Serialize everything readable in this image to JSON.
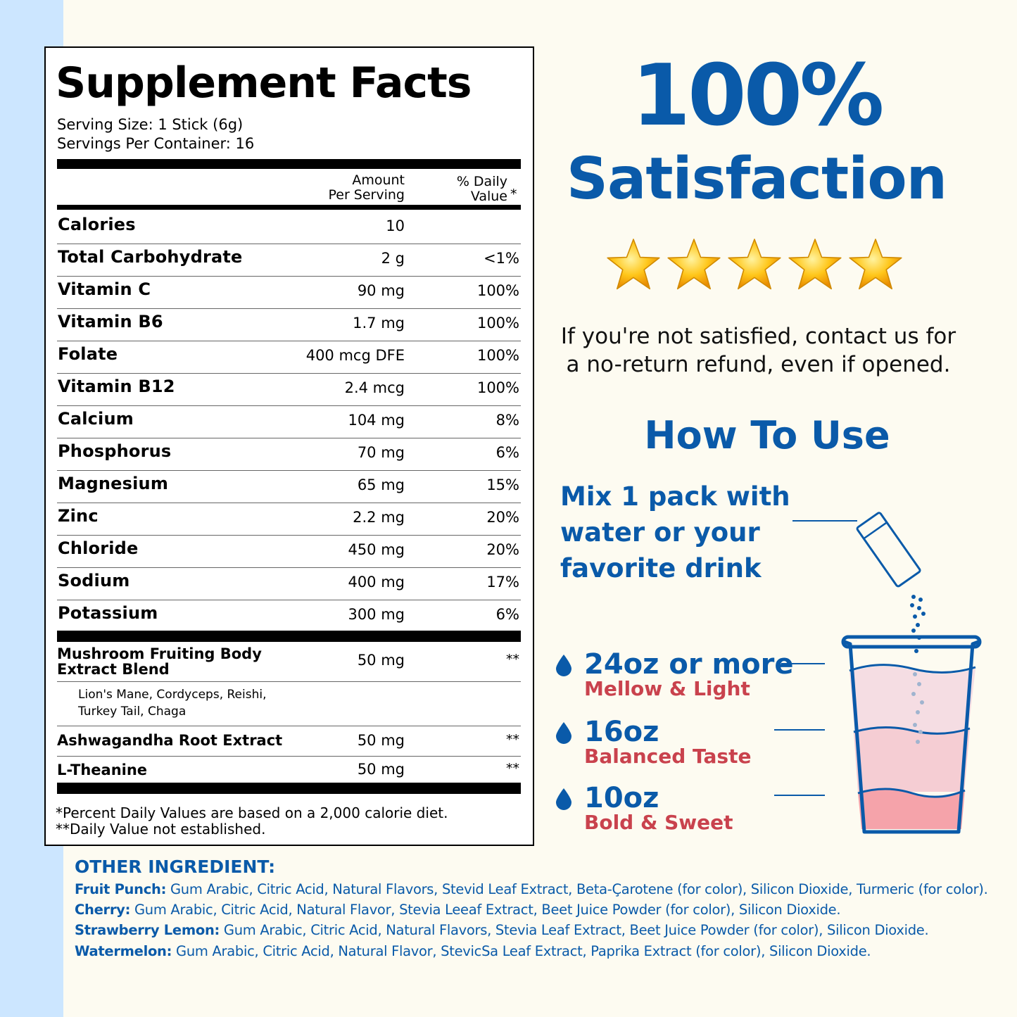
{
  "facts": {
    "title": "Supplement Facts",
    "serving_size": "Serving Size: 1 Stick (6g)",
    "servings_per_container": "Servings Per Container: 16",
    "header_amount_1": "Amount",
    "header_amount_2": "Per Serving",
    "header_dv_1": "% Daily",
    "header_dv_2": "Value",
    "header_dv_star": "*",
    "nutrients": [
      {
        "name": "Calories",
        "amount": "10",
        "dv": ""
      },
      {
        "name": "Total Carbohydrate",
        "amount": "2 g",
        "dv": "<1%"
      },
      {
        "name": "Vitamin C",
        "amount": "90 mg",
        "dv": "100%"
      },
      {
        "name": "Vitamin B6",
        "amount": "1.7 mg",
        "dv": "100%"
      },
      {
        "name": "Folate",
        "amount": "400 mcg DFE",
        "dv": "100%"
      },
      {
        "name": "Vitamin B12",
        "amount": "2.4 mcg",
        "dv": "100%"
      },
      {
        "name": "Calcium",
        "amount": "104 mg",
        "dv": "8%"
      },
      {
        "name": "Phosphorus",
        "amount": "70 mg",
        "dv": "6%"
      },
      {
        "name": "Magnesium",
        "amount": "65 mg",
        "dv": "15%"
      },
      {
        "name": "Zinc",
        "amount": "2.2 mg",
        "dv": "20%"
      },
      {
        "name": "Chloride",
        "amount": "450 mg",
        "dv": "20%"
      },
      {
        "name": "Sodium",
        "amount": "400 mg",
        "dv": "17%"
      },
      {
        "name": "Potassium",
        "amount": "300 mg",
        "dv": "6%"
      }
    ],
    "blends": [
      {
        "name_1": "Mushroom Fruiting Body",
        "name_2": "Extract Blend",
        "amount": "50 mg",
        "dv": "**",
        "sub_1": "Lion's Mane, Cordyceps, Reishi,",
        "sub_2": "Turkey Tail, Chaga"
      },
      {
        "name_1": "Ashwagandha Root Extract",
        "amount": "50 mg",
        "dv": "**"
      },
      {
        "name_1": "L-Theanine",
        "amount": "50 mg",
        "dv": "**"
      }
    ],
    "footnote_1": "*Percent Daily Values are based on a 2,000 calorie diet.",
    "footnote_2": "**Daily Value not established."
  },
  "satisfaction": {
    "percent": "100%",
    "label": "Satisfaction",
    "rating_stars": 5,
    "refund_1": "If you're not satisfied, contact us for",
    "refund_2": "a no-return refund, even if opened."
  },
  "how_to_use": {
    "title": "How To Use",
    "mix_1": "Mix 1 pack with",
    "mix_2": "water or your",
    "mix_3": "favorite drink",
    "levels": [
      {
        "amount": "24oz or more",
        "taste": "Mellow & Light"
      },
      {
        "amount": "16oz",
        "taste": "Balanced Taste"
      },
      {
        "amount": "10oz",
        "taste": "Bold & Sweet"
      }
    ]
  },
  "other_ingredients": {
    "title": "OTHER INGREDIENT:",
    "items": [
      {
        "flavor": "Fruit Punch:",
        "text": " Gum Arabic, Citric Acid, Natural Flavors, Stevid Leaf Extract, Beta-Çarotene (for color), Silicon Dioxide, Turmeric (for color)."
      },
      {
        "flavor": "Cherry:",
        "text": " Gum Arabic, Citric Acid, Natural Flavor, Stevia Leeaf Extract, Beet Juice Powder (for color), Silicon Dioxide."
      },
      {
        "flavor": "Strawberry Lemon:",
        "text": " Gum Arabic, Citric Acid, Natural Flavors, Stevia Leaf Extract, Beet Juice Powder (for color), Silicon Dioxide."
      },
      {
        "flavor": "Watermelon:",
        "text": " Gum Arabic, Citric Acid, Natural Flavor, StevicSa Leaf Extract, Paprika Extract (for color), Silicon Dioxide."
      }
    ]
  },
  "colors": {
    "brand_blue": "#0a5aa9",
    "accent_red": "#c9424d",
    "side_strip": "#cce6ff",
    "background": "#fdfbf1",
    "star_gold": "#f7b500"
  }
}
